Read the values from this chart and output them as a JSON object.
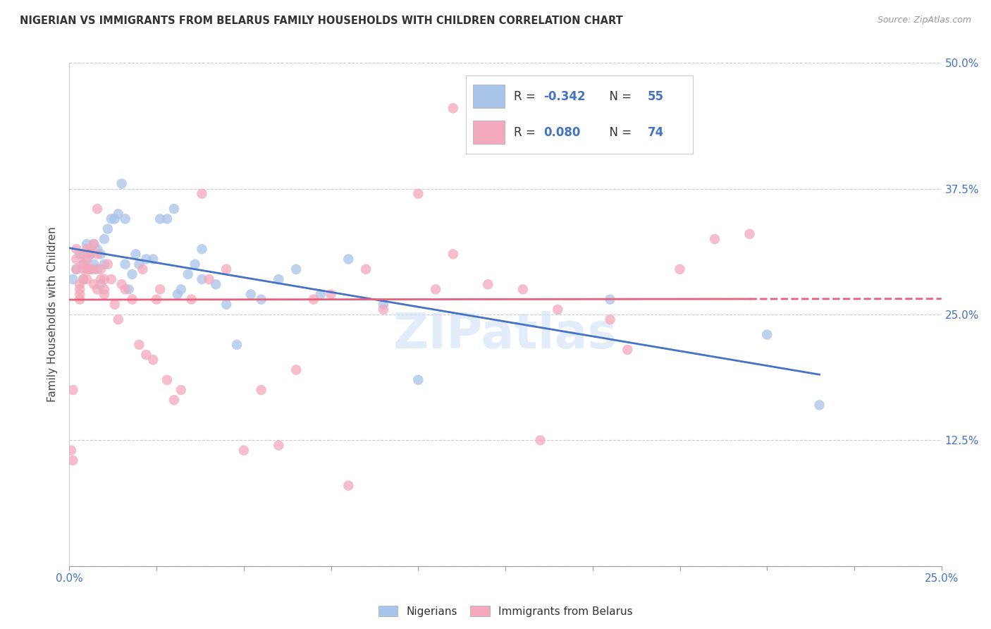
{
  "title": "NIGERIAN VS IMMIGRANTS FROM BELARUS FAMILY HOUSEHOLDS WITH CHILDREN CORRELATION CHART",
  "source": "Source: ZipAtlas.com",
  "ylabel": "Family Households with Children",
  "xlim": [
    0.0,
    0.25
  ],
  "ylim": [
    0.0,
    0.5
  ],
  "xticks": [
    0.0,
    0.025,
    0.05,
    0.075,
    0.1,
    0.125,
    0.15,
    0.175,
    0.2,
    0.225,
    0.25
  ],
  "yticks": [
    0.0,
    0.125,
    0.25,
    0.375,
    0.5
  ],
  "blue_R": -0.342,
  "blue_N": 55,
  "pink_R": 0.08,
  "pink_N": 74,
  "blue_color": "#a8c4e8",
  "pink_color": "#f4a8bb",
  "blue_line_color": "#4472c4",
  "pink_line_color": "#e8607a",
  "watermark": "ZIPatlas",
  "blue_scatter_x": [
    0.001,
    0.002,
    0.003,
    0.004,
    0.004,
    0.005,
    0.005,
    0.005,
    0.006,
    0.006,
    0.006,
    0.007,
    0.007,
    0.008,
    0.008,
    0.009,
    0.009,
    0.01,
    0.01,
    0.011,
    0.012,
    0.013,
    0.014,
    0.015,
    0.016,
    0.016,
    0.017,
    0.018,
    0.019,
    0.02,
    0.022,
    0.024,
    0.026,
    0.028,
    0.03,
    0.031,
    0.032,
    0.034,
    0.036,
    0.038,
    0.038,
    0.042,
    0.045,
    0.048,
    0.052,
    0.055,
    0.06,
    0.065,
    0.072,
    0.08,
    0.09,
    0.1,
    0.155,
    0.2,
    0.215
  ],
  "blue_scatter_y": [
    0.285,
    0.295,
    0.31,
    0.3,
    0.285,
    0.32,
    0.305,
    0.295,
    0.31,
    0.295,
    0.31,
    0.32,
    0.3,
    0.315,
    0.295,
    0.31,
    0.28,
    0.325,
    0.3,
    0.335,
    0.345,
    0.345,
    0.35,
    0.38,
    0.345,
    0.3,
    0.275,
    0.29,
    0.31,
    0.3,
    0.305,
    0.305,
    0.345,
    0.345,
    0.355,
    0.27,
    0.275,
    0.29,
    0.3,
    0.285,
    0.315,
    0.28,
    0.26,
    0.22,
    0.27,
    0.265,
    0.285,
    0.295,
    0.27,
    0.305,
    0.26,
    0.185,
    0.265,
    0.23,
    0.16
  ],
  "pink_scatter_x": [
    0.0005,
    0.001,
    0.001,
    0.002,
    0.002,
    0.002,
    0.003,
    0.003,
    0.003,
    0.003,
    0.004,
    0.004,
    0.004,
    0.004,
    0.005,
    0.005,
    0.005,
    0.005,
    0.006,
    0.006,
    0.006,
    0.007,
    0.007,
    0.007,
    0.008,
    0.008,
    0.008,
    0.009,
    0.009,
    0.01,
    0.01,
    0.01,
    0.011,
    0.012,
    0.013,
    0.014,
    0.015,
    0.016,
    0.018,
    0.02,
    0.021,
    0.022,
    0.024,
    0.025,
    0.026,
    0.028,
    0.03,
    0.032,
    0.035,
    0.038,
    0.04,
    0.045,
    0.05,
    0.055,
    0.06,
    0.065,
    0.07,
    0.075,
    0.085,
    0.09,
    0.1,
    0.105,
    0.11,
    0.12,
    0.13,
    0.135,
    0.14,
    0.155,
    0.16,
    0.175,
    0.185,
    0.195,
    0.11,
    0.08
  ],
  "pink_scatter_y": [
    0.115,
    0.105,
    0.175,
    0.295,
    0.305,
    0.315,
    0.28,
    0.275,
    0.27,
    0.265,
    0.295,
    0.285,
    0.3,
    0.31,
    0.315,
    0.295,
    0.305,
    0.285,
    0.295,
    0.315,
    0.31,
    0.32,
    0.295,
    0.28,
    0.355,
    0.31,
    0.275,
    0.295,
    0.285,
    0.285,
    0.275,
    0.27,
    0.3,
    0.285,
    0.26,
    0.245,
    0.28,
    0.275,
    0.265,
    0.22,
    0.295,
    0.21,
    0.205,
    0.265,
    0.275,
    0.185,
    0.165,
    0.175,
    0.265,
    0.37,
    0.285,
    0.295,
    0.115,
    0.175,
    0.12,
    0.195,
    0.265,
    0.27,
    0.295,
    0.255,
    0.37,
    0.275,
    0.31,
    0.28,
    0.275,
    0.125,
    0.255,
    0.245,
    0.215,
    0.295,
    0.325,
    0.33,
    0.455,
    0.08
  ]
}
